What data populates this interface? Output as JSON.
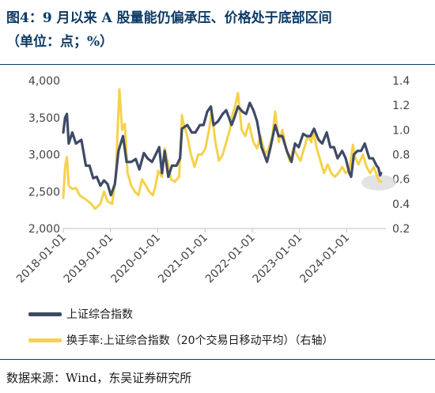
{
  "header": {
    "title": "图4：9 月以来 A 股量能仍偏承压、价格处于底部区间",
    "subtitle": "（单位：点；%）"
  },
  "footer": {
    "source": "数据来源：Wind，东吴证券研究所"
  },
  "colors": {
    "index": "#3e4a66",
    "turnover": "#f5d24b",
    "title": "#0d3b66",
    "highlight": "#d9d9d9"
  },
  "chart_data": {
    "type": "line",
    "x_ticks": [
      "2018-01-01",
      "2019-01-01",
      "2020-01-01",
      "2021-01-01",
      "2022-01-01",
      "2023-01-01",
      "2024-01-01"
    ],
    "x_range": [
      "2018-01-01",
      "2024-10-31"
    ],
    "y_left": {
      "range": [
        2000,
        4000
      ],
      "ticks": [
        "2,000",
        "2,500",
        "3,000",
        "3,500",
        "4,000"
      ]
    },
    "y_right": {
      "range": [
        0.2,
        1.4
      ],
      "ticks": [
        "0.2",
        "0.4",
        "0.6",
        "0.8",
        "1.0",
        "1.2",
        "1.4"
      ]
    },
    "grid": false,
    "legend_position": "bottom",
    "series": [
      {
        "name": "上证综合指数",
        "axis": "left",
        "points": [
          [
            "2018-01-01",
            3300
          ],
          [
            "2018-01-15",
            3500
          ],
          [
            "2018-01-29",
            3550
          ],
          [
            "2018-02-12",
            3150
          ],
          [
            "2018-03-12",
            3300
          ],
          [
            "2018-04-09",
            3150
          ],
          [
            "2018-05-21",
            3200
          ],
          [
            "2018-06-25",
            2850
          ],
          [
            "2018-07-23",
            2850
          ],
          [
            "2018-08-20",
            2680
          ],
          [
            "2018-09-17",
            2700
          ],
          [
            "2018-10-15",
            2580
          ],
          [
            "2018-11-12",
            2650
          ],
          [
            "2018-12-10",
            2600
          ],
          [
            "2019-01-04",
            2450
          ],
          [
            "2019-02-04",
            2600
          ],
          [
            "2019-03-04",
            3050
          ],
          [
            "2019-04-08",
            3250
          ],
          [
            "2019-05-06",
            2900
          ],
          [
            "2019-06-10",
            2900
          ],
          [
            "2019-07-15",
            2940
          ],
          [
            "2019-08-12",
            2800
          ],
          [
            "2019-09-16",
            3020
          ],
          [
            "2019-10-14",
            2950
          ],
          [
            "2019-11-18",
            2900
          ],
          [
            "2019-12-16",
            3000
          ],
          [
            "2020-01-13",
            3100
          ],
          [
            "2020-02-03",
            2750
          ],
          [
            "2020-02-24",
            3050
          ],
          [
            "2020-03-23",
            2700
          ],
          [
            "2020-04-20",
            2850
          ],
          [
            "2020-05-25",
            2850
          ],
          [
            "2020-06-22",
            2950
          ],
          [
            "2020-07-06",
            3350
          ],
          [
            "2020-08-17",
            3400
          ],
          [
            "2020-09-21",
            3300
          ],
          [
            "2020-10-19",
            3300
          ],
          [
            "2020-11-23",
            3400
          ],
          [
            "2020-12-21",
            3400
          ],
          [
            "2021-01-18",
            3580
          ],
          [
            "2021-02-15",
            3650
          ],
          [
            "2021-03-08",
            3400
          ],
          [
            "2021-04-12",
            3450
          ],
          [
            "2021-05-17",
            3550
          ],
          [
            "2021-06-14",
            3600
          ],
          [
            "2021-07-26",
            3400
          ],
          [
            "2021-08-16",
            3500
          ],
          [
            "2021-09-13",
            3650
          ],
          [
            "2021-10-18",
            3580
          ],
          [
            "2021-11-15",
            3550
          ],
          [
            "2021-12-13",
            3700
          ],
          [
            "2022-01-10",
            3600
          ],
          [
            "2022-02-07",
            3450
          ],
          [
            "2022-03-14",
            3100
          ],
          [
            "2022-04-25",
            2900
          ],
          [
            "2022-05-23",
            3100
          ],
          [
            "2022-06-27",
            3400
          ],
          [
            "2022-07-25",
            3250
          ],
          [
            "2022-08-22",
            3250
          ],
          [
            "2022-09-26",
            3050
          ],
          [
            "2022-10-31",
            2900
          ],
          [
            "2022-11-28",
            3150
          ],
          [
            "2022-12-26",
            3100
          ],
          [
            "2023-01-30",
            3280
          ],
          [
            "2023-02-27",
            3250
          ],
          [
            "2023-03-27",
            3250
          ],
          [
            "2023-04-24",
            3350
          ],
          [
            "2023-05-29",
            3200
          ],
          [
            "2023-06-26",
            3150
          ],
          [
            "2023-07-31",
            3300
          ],
          [
            "2023-08-28",
            3100
          ],
          [
            "2023-09-25",
            3100
          ],
          [
            "2023-10-23",
            2950
          ],
          [
            "2023-11-27",
            3050
          ],
          [
            "2023-12-25",
            2950
          ],
          [
            "2024-01-22",
            2750
          ],
          [
            "2024-02-05",
            2700
          ],
          [
            "2024-02-26",
            3000
          ],
          [
            "2024-03-25",
            3050
          ],
          [
            "2024-04-22",
            3050
          ],
          [
            "2024-05-20",
            3150
          ],
          [
            "2024-06-24",
            2950
          ],
          [
            "2024-07-22",
            2950
          ],
          [
            "2024-08-19",
            2850
          ],
          [
            "2024-09-02",
            2820
          ],
          [
            "2024-09-16",
            2720
          ],
          [
            "2024-09-23",
            2750
          ]
        ]
      },
      {
        "name": "换手率:上证综合指数（20个交易日移动平均）（右轴）",
        "axis": "right",
        "points": [
          [
            "2018-01-01",
            0.45
          ],
          [
            "2018-01-15",
            0.7
          ],
          [
            "2018-01-29",
            0.78
          ],
          [
            "2018-02-12",
            0.55
          ],
          [
            "2018-03-12",
            0.52
          ],
          [
            "2018-04-09",
            0.53
          ],
          [
            "2018-05-07",
            0.47
          ],
          [
            "2018-06-04",
            0.45
          ],
          [
            "2018-07-02",
            0.43
          ],
          [
            "2018-08-06",
            0.4
          ],
          [
            "2018-09-03",
            0.36
          ],
          [
            "2018-10-15",
            0.4
          ],
          [
            "2018-11-12",
            0.5
          ],
          [
            "2018-12-10",
            0.42
          ],
          [
            "2019-01-14",
            0.4
          ],
          [
            "2019-02-11",
            0.62
          ],
          [
            "2019-02-25",
            1.0
          ],
          [
            "2019-03-11",
            1.33
          ],
          [
            "2019-04-01",
            1.0
          ],
          [
            "2019-04-22",
            1.05
          ],
          [
            "2019-05-13",
            0.65
          ],
          [
            "2019-06-10",
            0.55
          ],
          [
            "2019-07-08",
            0.5
          ],
          [
            "2019-08-05",
            0.47
          ],
          [
            "2019-09-02",
            0.6
          ],
          [
            "2019-09-30",
            0.55
          ],
          [
            "2019-10-28",
            0.5
          ],
          [
            "2019-11-25",
            0.47
          ],
          [
            "2019-12-16",
            0.55
          ],
          [
            "2020-01-06",
            0.67
          ],
          [
            "2020-02-03",
            0.62
          ],
          [
            "2020-02-24",
            0.85
          ],
          [
            "2020-03-16",
            0.75
          ],
          [
            "2020-04-13",
            0.6
          ],
          [
            "2020-05-11",
            0.58
          ],
          [
            "2020-06-15",
            0.62
          ],
          [
            "2020-07-06",
            1.12
          ],
          [
            "2020-07-20",
            1.05
          ],
          [
            "2020-08-17",
            0.95
          ],
          [
            "2020-09-14",
            0.8
          ],
          [
            "2020-10-12",
            0.7
          ],
          [
            "2020-11-09",
            0.8
          ],
          [
            "2020-12-07",
            0.8
          ],
          [
            "2021-01-04",
            0.85
          ],
          [
            "2021-02-01",
            1.0
          ],
          [
            "2021-02-22",
            1.15
          ],
          [
            "2021-03-22",
            0.9
          ],
          [
            "2021-04-19",
            0.75
          ],
          [
            "2021-05-17",
            0.8
          ],
          [
            "2021-06-14",
            0.9
          ],
          [
            "2021-07-12",
            1.0
          ],
          [
            "2021-07-26",
            1.1
          ],
          [
            "2021-08-23",
            1.2
          ],
          [
            "2021-09-13",
            1.3
          ],
          [
            "2021-10-11",
            1.0
          ],
          [
            "2021-11-08",
            0.95
          ],
          [
            "2021-12-06",
            1.05
          ],
          [
            "2022-01-10",
            0.9
          ],
          [
            "2022-02-07",
            0.85
          ],
          [
            "2022-03-07",
            0.95
          ],
          [
            "2022-04-11",
            0.8
          ],
          [
            "2022-05-09",
            0.85
          ],
          [
            "2022-06-06",
            0.95
          ],
          [
            "2022-06-27",
            1.15
          ],
          [
            "2022-07-25",
            0.9
          ],
          [
            "2022-08-22",
            1.0
          ],
          [
            "2022-09-19",
            0.85
          ],
          [
            "2022-10-17",
            0.75
          ],
          [
            "2022-11-14",
            0.85
          ],
          [
            "2022-12-12",
            0.8
          ],
          [
            "2023-01-09",
            0.75
          ],
          [
            "2023-02-06",
            0.85
          ],
          [
            "2023-03-06",
            0.95
          ],
          [
            "2023-04-03",
            0.9
          ],
          [
            "2023-04-17",
            1.0
          ],
          [
            "2023-05-15",
            0.85
          ],
          [
            "2023-06-12",
            0.75
          ],
          [
            "2023-07-10",
            0.65
          ],
          [
            "2023-08-07",
            0.72
          ],
          [
            "2023-09-04",
            0.65
          ],
          [
            "2023-10-02",
            0.62
          ],
          [
            "2023-10-30",
            0.65
          ],
          [
            "2023-11-27",
            0.7
          ],
          [
            "2023-12-25",
            0.65
          ],
          [
            "2024-01-22",
            0.68
          ],
          [
            "2024-02-19",
            0.88
          ],
          [
            "2024-03-04",
            0.78
          ],
          [
            "2024-04-01",
            0.72
          ],
          [
            "2024-05-06",
            0.8
          ],
          [
            "2024-06-03",
            0.7
          ],
          [
            "2024-07-01",
            0.65
          ],
          [
            "2024-07-29",
            0.7
          ],
          [
            "2024-08-26",
            0.62
          ],
          [
            "2024-09-09",
            0.58
          ],
          [
            "2024-09-23",
            0.58
          ]
        ]
      }
    ]
  }
}
